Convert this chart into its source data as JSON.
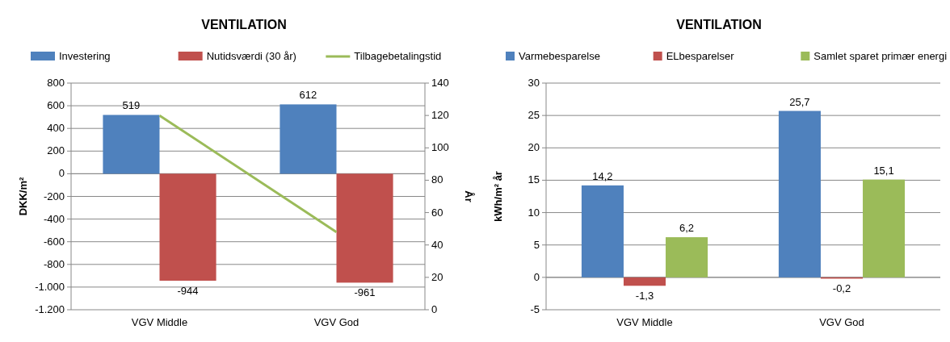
{
  "chart_data": [
    {
      "type": "bar",
      "title": "VENTILATION",
      "categories": [
        "VGV Middle",
        "VGV God"
      ],
      "ylabel": "DKK/m²",
      "y2label": "År",
      "ylim": [
        -1200,
        800
      ],
      "yticks": [
        {
          "value": -1200,
          "label": "-1.200"
        },
        {
          "value": -1000,
          "label": "-1.000"
        },
        -800,
        -600,
        -400,
        -200,
        0,
        200,
        400,
        600,
        800
      ],
      "y2lim": [
        0,
        140
      ],
      "y2ticks": [
        0,
        20,
        40,
        60,
        80,
        100,
        120,
        140
      ],
      "grid": "y",
      "legend": "top",
      "series": [
        {
          "name": "Investering",
          "color": "#4f81bd",
          "values": [
            519,
            612
          ],
          "value_labels": [
            "519",
            "612"
          ]
        },
        {
          "name": "Nutidsværdi (30 år)",
          "color": "#c0504d",
          "values": [
            -944,
            -961
          ],
          "value_labels": [
            "-944",
            "-961"
          ]
        },
        {
          "name": "Tilbagebetalingstid",
          "type": "line",
          "axis": "y2",
          "color": "#9bbb59",
          "values": [
            120,
            48
          ]
        }
      ]
    },
    {
      "type": "bar",
      "title": "VENTILATION",
      "categories": [
        "VGV Middle",
        "VGV God"
      ],
      "ylabel": "kWh/m² år",
      "ylim": [
        -5,
        30
      ],
      "yticks": [
        -5,
        0,
        5,
        10,
        15,
        20,
        25,
        30
      ],
      "grid": "y",
      "legend": "top",
      "series": [
        {
          "name": "Varmebesparelse",
          "color": "#4f81bd",
          "values": [
            14.2,
            25.7
          ],
          "value_labels": [
            "14,2",
            "25,7"
          ]
        },
        {
          "name": "ELbesparelser",
          "color": "#c0504d",
          "values": [
            -1.3,
            -0.2
          ],
          "value_labels": [
            "-1,3",
            "-0,2"
          ]
        },
        {
          "name": "Samlet sparet primær energi",
          "color": "#9bbb59",
          "values": [
            6.2,
            15.1
          ],
          "value_labels": [
            "6,2",
            "15,1"
          ]
        }
      ]
    }
  ]
}
